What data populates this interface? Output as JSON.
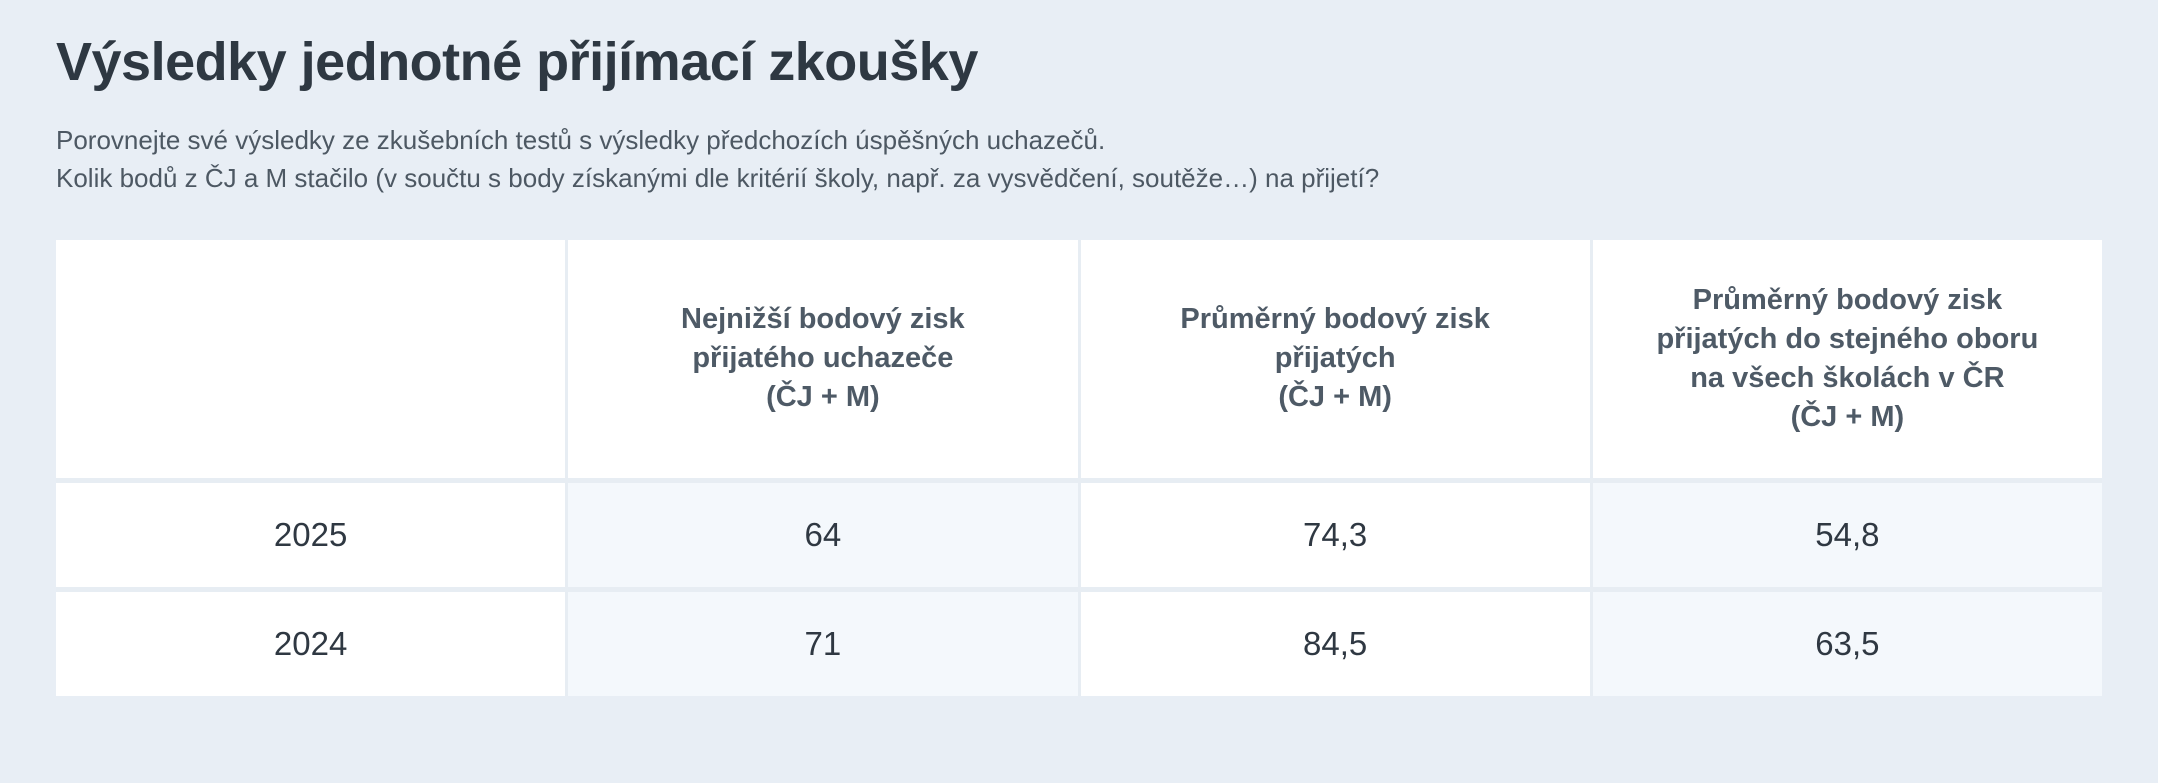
{
  "page": {
    "title": "Výsledky jednotné přijímací zkoušky",
    "description_line1": "Porovnejte své výsledky ze zkušebních testů s výsledky předchozích úspěšných uchazečů.",
    "description_line2": "Kolik bodů z ČJ a M stačilo (v součtu s body získanými dle kritérií školy, např. za vysvědčení, soutěže…) na přijetí?"
  },
  "colors": {
    "background": "#e8eef5",
    "table_background": "#ffffff",
    "tinted_cell": "#f4f8fc",
    "divider": "#e7edf3",
    "title_text": "#2e3842",
    "description_text": "#4d5863",
    "header_text": "#4e5a66",
    "cell_text": "#2f3842"
  },
  "table": {
    "header": {
      "col0": "",
      "col1": "Nejnižší bodový zisk\npřijatého uchazeče\n(ČJ + M)",
      "col2": "Průměrný bodový zisk\npřijatých\n(ČJ + M)",
      "col3": "Průměrný bodový zisk\npřijatých do stejného oboru\nna všech školách v ČR\n(ČJ + M)"
    },
    "rows": [
      {
        "year": "2025",
        "lowest": "64",
        "average": "74,3",
        "average_all_cz": "54,8"
      },
      {
        "year": "2024",
        "lowest": "71",
        "average": "84,5",
        "average_all_cz": "63,5"
      }
    ]
  }
}
